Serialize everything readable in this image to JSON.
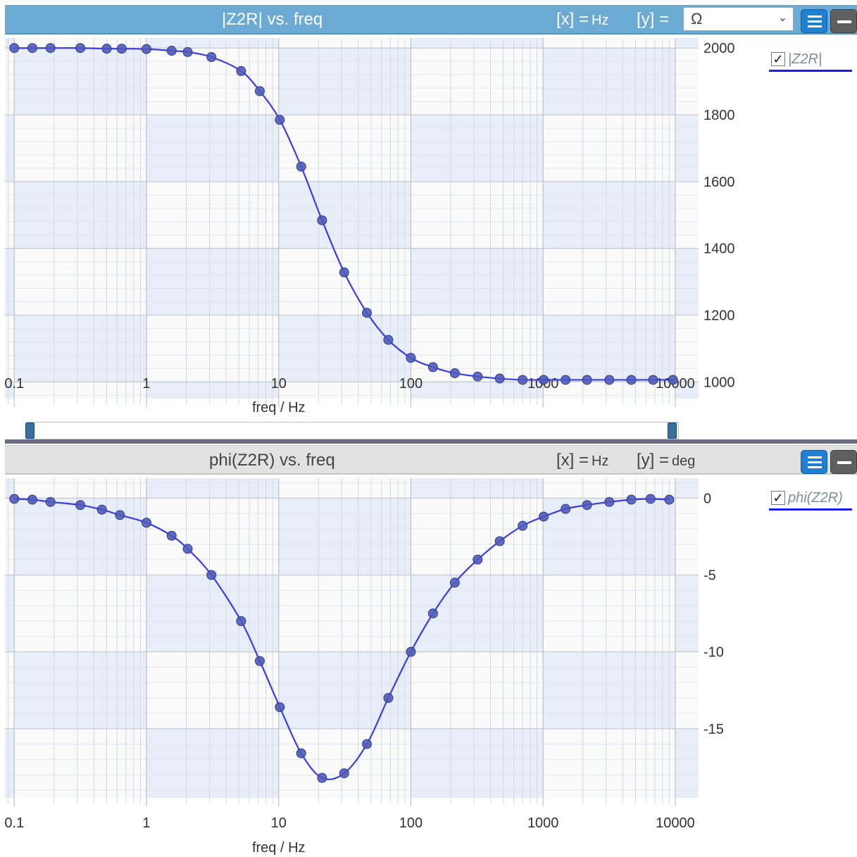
{
  "top_panel": {
    "title": "|Z2R| vs. freq",
    "x_unit_label": "[x]  =",
    "x_unit": "Hz",
    "y_unit_label": "[y] =",
    "y_unit_select": "Ω",
    "legend_label": "|Z2R|"
  },
  "bottom_panel": {
    "title": "phi(Z2R) vs. freq",
    "x_unit_label": "[x]  =",
    "x_unit": "Hz",
    "y_unit_label": "[y]  =",
    "y_unit": "deg",
    "legend_label": "phi(Z2R)"
  },
  "colors": {
    "line": "#3b3bea",
    "marker": "#4e5bb8",
    "header_active": "#6aaad3",
    "header_inactive": "#e2e2e2",
    "menu_button": "#1f7fd3"
  },
  "icons": {
    "menu": "hamburger-icon",
    "minimize": "minus-icon",
    "dropdown": "chevron-down-icon",
    "checkbox": "check-icon"
  },
  "chart_data": [
    {
      "type": "line",
      "title": "|Z2R| vs. freq",
      "xlabel": "freq / Hz",
      "ylabel": "",
      "xscale": "log",
      "xlim": [
        0.085,
        15000
      ],
      "ylim": [
        950,
        2030
      ],
      "xticks": [
        0.1,
        1,
        10,
        100,
        1000,
        10000
      ],
      "xtick_labels": [
        "0.1",
        "1",
        "10",
        "100",
        "1000",
        "10000"
      ],
      "yticks": [
        1000,
        1200,
        1400,
        1600,
        1800,
        2000
      ],
      "ytick_labels": [
        "1000",
        "1200",
        "1400",
        "1600",
        "1800",
        "2000"
      ],
      "grid": true,
      "legend_position": "right",
      "series": [
        {
          "name": "|Z2R|",
          "x": [
            0.1,
            0.137,
            0.188,
            0.316,
            0.5,
            0.65,
            1.0,
            1.55,
            2.05,
            3.1,
            5.2,
            7.2,
            10.2,
            14.8,
            21.3,
            31.3,
            46.5,
            67.5,
            100,
            147,
            215,
            320,
            470,
            700,
            1010,
            1480,
            2150,
            3170,
            4650,
            6800,
            9600
          ],
          "y": [
            2000,
            2000,
            2000,
            2000,
            1998,
            1998,
            1997,
            1992,
            1988,
            1973,
            1931,
            1871,
            1785,
            1645,
            1484,
            1328,
            1207,
            1126,
            1072,
            1044,
            1026,
            1016,
            1010,
            1006,
            1006,
            1006,
            1006,
            1006,
            1006,
            1006,
            1006
          ]
        }
      ]
    },
    {
      "type": "line",
      "title": "phi(Z2R) vs. freq",
      "xlabel": "freq / Hz",
      "ylabel": "",
      "xscale": "log",
      "xlim": [
        0.085,
        15000
      ],
      "ylim": [
        -19.5,
        1.3
      ],
      "xticks": [
        0.1,
        1,
        10,
        100,
        1000,
        10000
      ],
      "xtick_labels": [
        "0.1",
        "1",
        "10",
        "100",
        "1000",
        "10000"
      ],
      "yticks": [
        0,
        -5,
        -10,
        -15
      ],
      "ytick_labels": [
        "0",
        "-5",
        "-10",
        "-15"
      ],
      "grid": true,
      "legend_position": "right",
      "series": [
        {
          "name": "phi(Z2R)",
          "x": [
            0.1,
            0.137,
            0.188,
            0.316,
            0.46,
            0.63,
            1.0,
            1.55,
            2.05,
            3.1,
            5.2,
            7.2,
            10.2,
            14.8,
            21.3,
            31.3,
            46.5,
            67.5,
            100,
            147,
            215,
            320,
            470,
            700,
            1010,
            1480,
            2150,
            3170,
            4650,
            6500,
            9000
          ],
          "y": [
            -0.05,
            -0.1,
            -0.25,
            -0.45,
            -0.75,
            -1.1,
            -1.6,
            -2.45,
            -3.3,
            -5.0,
            -8.0,
            -10.6,
            -13.6,
            -16.6,
            -18.2,
            -17.9,
            -16.0,
            -13.0,
            -10.0,
            -7.5,
            -5.5,
            -4.0,
            -2.8,
            -1.8,
            -1.2,
            -0.7,
            -0.45,
            -0.25,
            -0.1,
            -0.05,
            -0.1
          ]
        }
      ]
    }
  ]
}
